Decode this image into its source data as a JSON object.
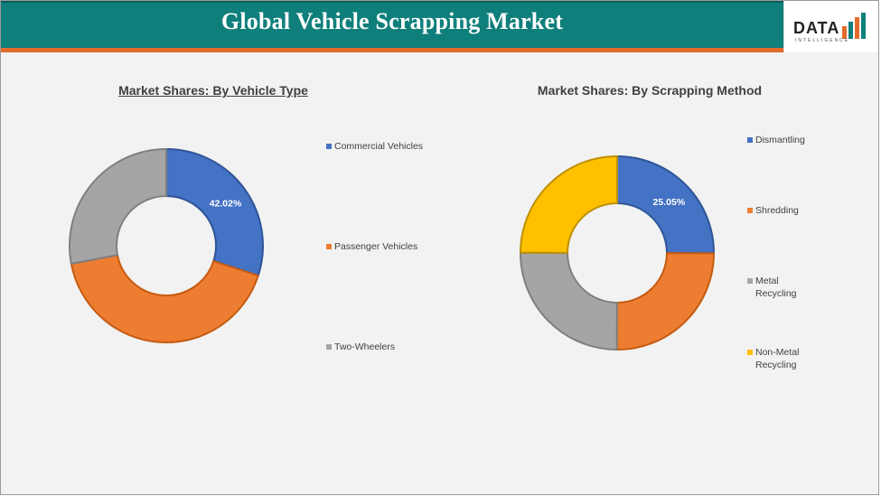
{
  "header": {
    "title": "Global Vehicle Scrapping Market",
    "logo_main": "DATA",
    "logo_sub": "INTELLIGENCE"
  },
  "colors": {
    "header_bg": "#0f7f7b",
    "accent": "#e26b2c",
    "blue": "#4472c4",
    "orange": "#ed7d31",
    "gray": "#a5a5a5",
    "yellow": "#ffc000"
  },
  "chart_data": [
    {
      "type": "pie",
      "style": "donut",
      "title": "Market Shares: By Vehicle Type",
      "categories": [
        "Commercial Vehicles",
        "Passenger Vehicles",
        "Two-Wheelers"
      ],
      "values": [
        30.0,
        42.02,
        27.98
      ],
      "data_labels": [
        "42.02%",
        "",
        ""
      ],
      "colors": [
        "#4472c4",
        "#ed7d31",
        "#a5a5a5"
      ],
      "legend_position": "right"
    },
    {
      "type": "pie",
      "style": "donut",
      "title": "Market Shares: By Scrapping Method",
      "categories": [
        "Dismantling",
        "Shredding",
        "Metal Recycling",
        "Non-Metal Recycling"
      ],
      "values": [
        25.05,
        25.0,
        25.0,
        24.95
      ],
      "data_labels": [
        "25.05%",
        "",
        "",
        ""
      ],
      "colors": [
        "#4472c4",
        "#ed7d31",
        "#a5a5a5",
        "#ffc000"
      ],
      "legend_position": "right"
    }
  ]
}
